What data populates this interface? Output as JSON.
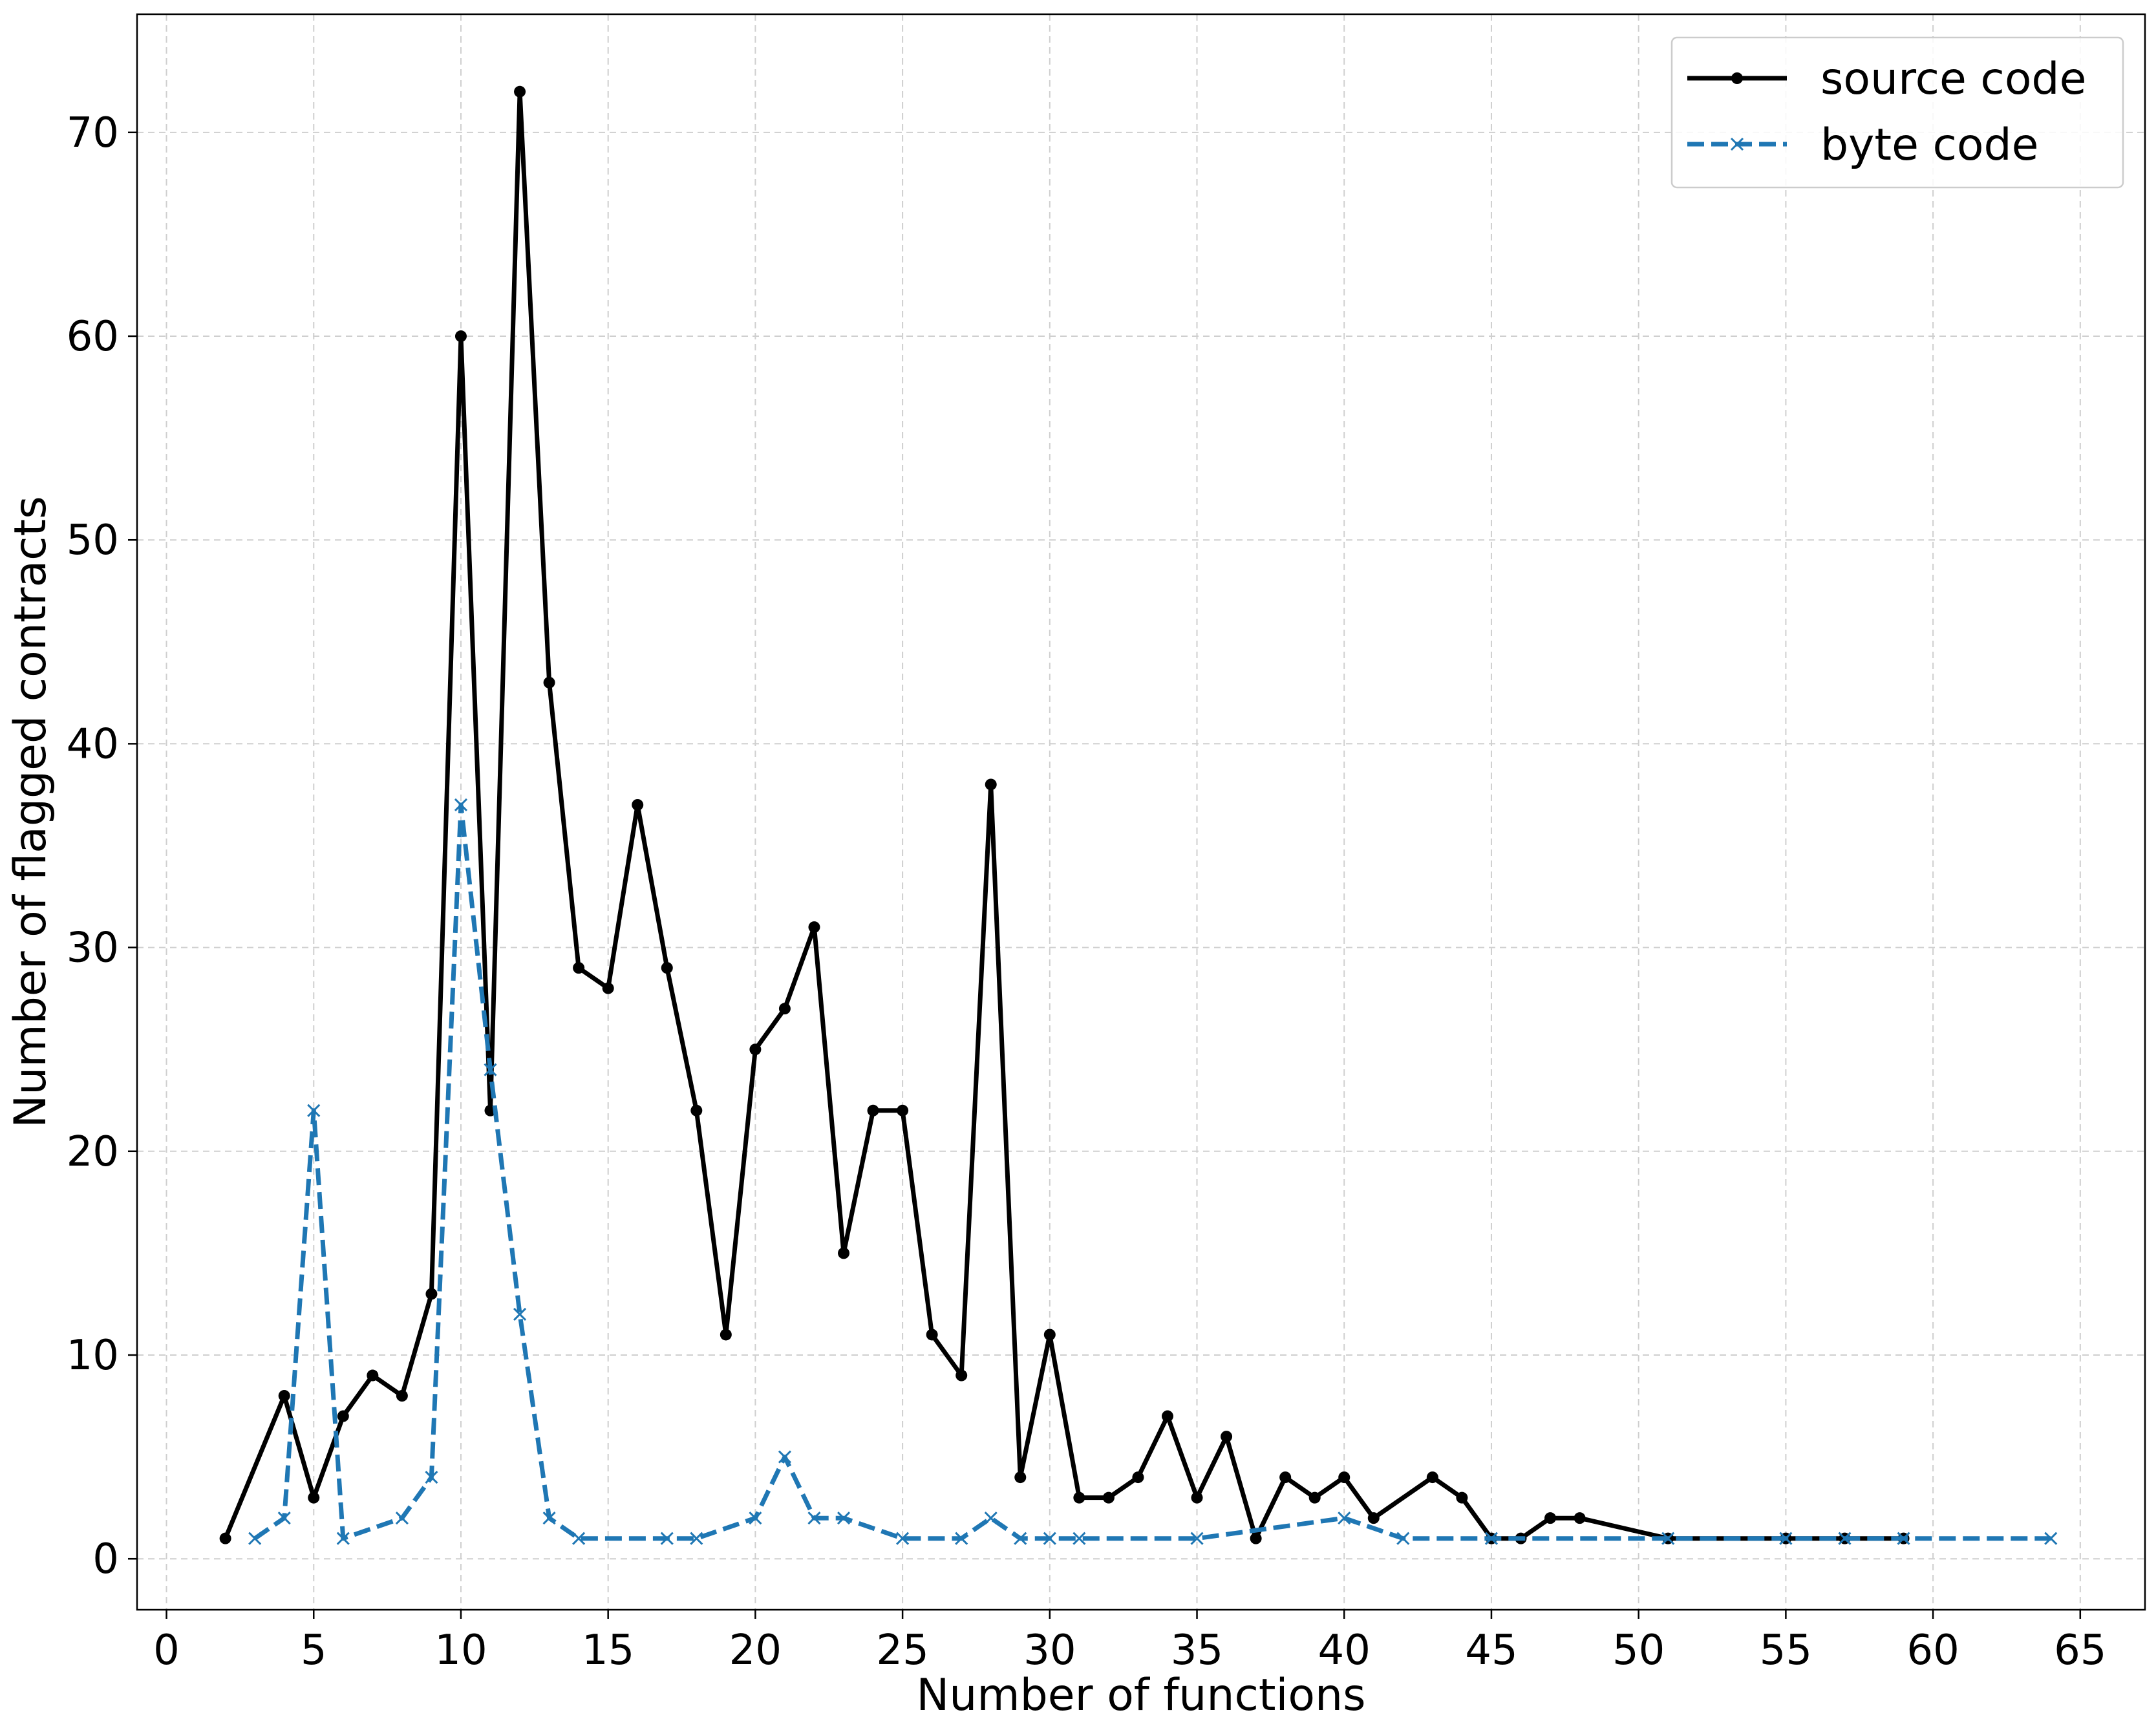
{
  "chart_data": {
    "type": "line",
    "title": "",
    "xlabel": "Number of functions",
    "ylabel": "Number of flagged contracts",
    "xlim": [
      -1,
      67.2
    ],
    "ylim": [
      -2.5,
      75.8
    ],
    "xticks": [
      0,
      5,
      10,
      15,
      20,
      25,
      30,
      35,
      40,
      45,
      50,
      55,
      60,
      65
    ],
    "yticks": [
      0,
      10,
      20,
      30,
      40,
      50,
      60,
      70
    ],
    "grid": true,
    "legend_position": "top-right",
    "series": [
      {
        "name": "source code",
        "color": "#000000",
        "style": "solid",
        "marker": "circle",
        "points": [
          [
            2,
            1
          ],
          [
            4,
            8
          ],
          [
            5,
            3
          ],
          [
            6,
            7
          ],
          [
            7,
            9
          ],
          [
            8,
            8
          ],
          [
            9,
            13
          ],
          [
            10,
            60
          ],
          [
            11,
            22
          ],
          [
            12,
            72
          ],
          [
            13,
            43
          ],
          [
            14,
            29
          ],
          [
            15,
            28
          ],
          [
            16,
            37
          ],
          [
            17,
            29
          ],
          [
            18,
            22
          ],
          [
            19,
            11
          ],
          [
            20,
            25
          ],
          [
            21,
            27
          ],
          [
            22,
            31
          ],
          [
            23,
            15
          ],
          [
            24,
            22
          ],
          [
            25,
            22
          ],
          [
            26,
            11
          ],
          [
            27,
            9
          ],
          [
            28,
            38
          ],
          [
            29,
            4
          ],
          [
            30,
            11
          ],
          [
            31,
            3
          ],
          [
            32,
            3
          ],
          [
            33,
            4
          ],
          [
            34,
            7
          ],
          [
            35,
            3
          ],
          [
            36,
            6
          ],
          [
            37,
            1
          ],
          [
            38,
            4
          ],
          [
            39,
            3
          ],
          [
            40,
            4
          ],
          [
            41,
            2
          ],
          [
            43,
            4
          ],
          [
            44,
            3
          ],
          [
            45,
            1
          ],
          [
            46,
            1
          ],
          [
            47,
            2
          ],
          [
            48,
            2
          ],
          [
            51,
            1
          ],
          [
            55,
            1
          ],
          [
            57,
            1
          ],
          [
            59,
            1
          ]
        ]
      },
      {
        "name": "byte code",
        "color": "#1f77b4",
        "style": "dashed",
        "marker": "x",
        "points": [
          [
            3,
            1
          ],
          [
            4,
            2
          ],
          [
            5,
            22
          ],
          [
            6,
            1
          ],
          [
            8,
            2
          ],
          [
            9,
            4
          ],
          [
            10,
            37
          ],
          [
            11,
            24
          ],
          [
            12,
            12
          ],
          [
            13,
            2
          ],
          [
            14,
            1
          ],
          [
            17,
            1
          ],
          [
            18,
            1
          ],
          [
            20,
            2
          ],
          [
            21,
            5
          ],
          [
            22,
            2
          ],
          [
            23,
            2
          ],
          [
            25,
            1
          ],
          [
            27,
            1
          ],
          [
            28,
            2
          ],
          [
            29,
            1
          ],
          [
            30,
            1
          ],
          [
            31,
            1
          ],
          [
            35,
            1
          ],
          [
            40,
            2
          ],
          [
            42,
            1
          ],
          [
            45,
            1
          ],
          [
            51,
            1
          ],
          [
            55,
            1
          ],
          [
            57,
            1
          ],
          [
            59,
            1
          ],
          [
            64,
            1
          ]
        ]
      }
    ]
  }
}
